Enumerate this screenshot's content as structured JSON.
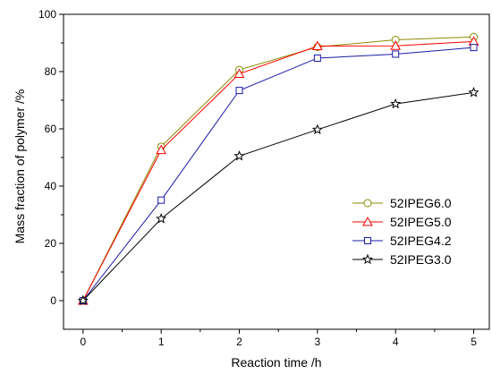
{
  "chart_data": {
    "type": "line",
    "title": "",
    "xlabel": "Reaction time /h",
    "ylabel": "Mass fraction of polymer /%",
    "xlim": [
      -0.25,
      5.2
    ],
    "ylim": [
      -10,
      100
    ],
    "xticks": [
      0,
      1,
      2,
      3,
      4,
      5
    ],
    "yticks": [
      0,
      20,
      40,
      60,
      80,
      100
    ],
    "grid": false,
    "legend_position": "lower-right",
    "series": [
      {
        "name": "52IPEG6.0",
        "marker": "circle",
        "color": "#8c8c00",
        "x": [
          0,
          1,
          2,
          3,
          4,
          5
        ],
        "y": [
          0,
          53.8,
          80.6,
          88.6,
          91.1,
          92.1
        ]
      },
      {
        "name": "52IPEG5.0",
        "marker": "triangle",
        "color": "#ff0000",
        "x": [
          0,
          1,
          2,
          3,
          4,
          5
        ],
        "y": [
          0,
          52.6,
          79.2,
          88.9,
          89.0,
          90.5
        ]
      },
      {
        "name": "52IPEG4.2",
        "marker": "square",
        "color": "#1a1aa6",
        "x": [
          0,
          1,
          2,
          3,
          4,
          5
        ],
        "y": [
          0,
          35.1,
          73.4,
          84.7,
          86.1,
          88.4
        ]
      },
      {
        "name": "52IPEG3.0",
        "marker": "star",
        "color": "#000000",
        "x": [
          0,
          1,
          2,
          3,
          4,
          5
        ],
        "y": [
          0,
          28.6,
          50.5,
          59.7,
          68.7,
          72.7
        ]
      }
    ]
  }
}
